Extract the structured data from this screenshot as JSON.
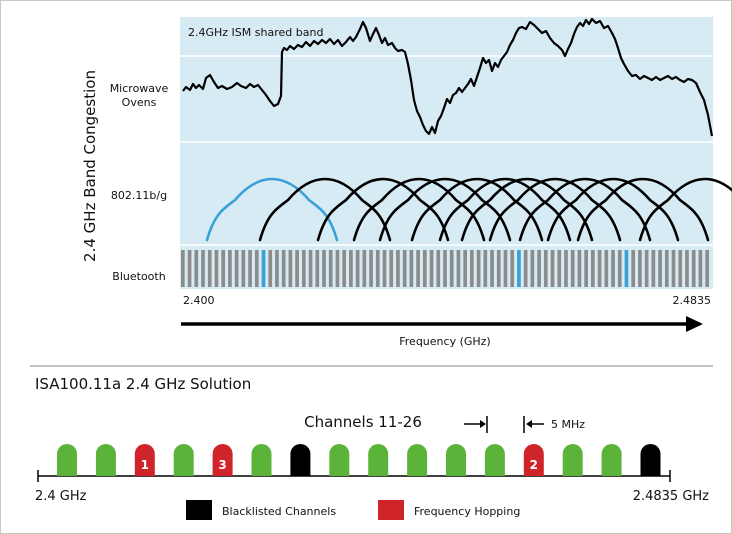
{
  "top_panel": {
    "band_label": "2.4GHz ISM shared band",
    "y_axis_title": "2.4 GHz Band Congestion",
    "rows": {
      "microwave": [
        "Microwave",
        "Ovens"
      ],
      "wifi": "802.11b/g",
      "bluetooth": "Bluetooth"
    },
    "freq_start": "2.400",
    "freq_end": "2.4835",
    "x_axis_title": "Frequency (GHz)",
    "bluetooth_channel_count": 79,
    "bluetooth_highlighted_channels": [
      12,
      50,
      66
    ]
  },
  "bottom_panel": {
    "title": "ISA100.11a 2.4 GHz Solution",
    "channels_label": "Channels 11-26",
    "spacing_label": "5 MHz",
    "freq_start": "2.4 GHz",
    "freq_end": "2.4835 GHz",
    "channels": [
      {
        "status": "normal",
        "label": ""
      },
      {
        "status": "normal",
        "label": ""
      },
      {
        "status": "hopping",
        "label": "1"
      },
      {
        "status": "normal",
        "label": ""
      },
      {
        "status": "hopping",
        "label": "3"
      },
      {
        "status": "normal",
        "label": ""
      },
      {
        "status": "blacklisted",
        "label": ""
      },
      {
        "status": "normal",
        "label": ""
      },
      {
        "status": "normal",
        "label": ""
      },
      {
        "status": "normal",
        "label": ""
      },
      {
        "status": "normal",
        "label": ""
      },
      {
        "status": "normal",
        "label": ""
      },
      {
        "status": "hopping",
        "label": "2"
      },
      {
        "status": "normal",
        "label": ""
      },
      {
        "status": "normal",
        "label": ""
      },
      {
        "status": "blacklisted",
        "label": ""
      }
    ],
    "legend": [
      {
        "status": "blacklisted",
        "label": "Blacklisted Channels"
      },
      {
        "status": "hopping",
        "label": "Frequency Hopping"
      }
    ]
  },
  "colors": {
    "band_bg": "#d6ebf4",
    "wifi_highlight": "#3aa0d6",
    "bt_bar": "#8c8c8c",
    "bt_highlight": "#3aa0d6",
    "normal": "#5cb33a",
    "hopping": "#d0242b",
    "blacklisted": "#000000"
  }
}
